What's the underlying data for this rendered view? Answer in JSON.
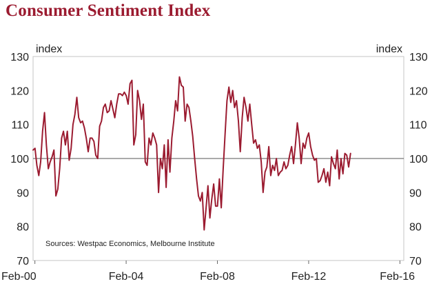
{
  "chart_data": {
    "type": "line",
    "title": "Consumer Sentiment Index",
    "y_unit_left": "index",
    "y_unit_right": "index",
    "ylim": [
      70,
      130
    ],
    "yticks": [
      70,
      80,
      90,
      100,
      110,
      120,
      130
    ],
    "reference_line": 100,
    "source": "Sources: Westpac Economics, Melbourne Institute",
    "x_range": [
      "Jan-00",
      "Apr-16"
    ],
    "xticks": [
      {
        "label": "Feb-00",
        "t": 0.08
      },
      {
        "label": "Feb-04",
        "t": 4.08
      },
      {
        "label": "Feb-08",
        "t": 8.08
      },
      {
        "label": "Feb-12",
        "t": 12.08
      },
      {
        "label": "Feb-16",
        "t": 16.08
      }
    ],
    "series": [
      {
        "name": "Consumer Sentiment Index",
        "color": "#9b1b30",
        "t_start": 0.0,
        "t_step": 0.08333,
        "values": [
          102.5,
          103,
          98,
          95,
          99,
          108,
          113.5,
          104,
          97,
          99,
          100.5,
          102.5,
          89,
          91,
          97,
          106,
          108,
          104,
          108,
          99.5,
          103,
          110,
          113,
          118,
          112,
          110.5,
          111,
          109,
          106,
          102,
          106,
          106,
          105,
          101,
          100,
          109.5,
          111,
          115,
          116,
          113.5,
          114,
          117,
          114.5,
          112,
          116,
          119,
          119,
          118.5,
          119.5,
          118.5,
          116,
          122,
          123,
          104,
          107,
          120,
          117,
          111.5,
          116,
          99,
          98,
          106,
          104,
          107.5,
          106,
          104,
          90,
          100,
          97,
          104,
          91.5,
          105.5,
          96,
          106,
          111,
          117,
          114,
          124,
          121.5,
          121,
          111,
          116,
          115,
          111,
          106.5,
          100,
          94,
          89,
          87.5,
          90,
          79,
          85.5,
          92,
          82.5,
          88,
          92.5,
          86,
          86,
          94,
          85.5,
          97,
          107,
          117,
          121,
          116.5,
          120,
          115,
          117,
          111,
          102,
          112,
          118,
          115,
          111,
          116,
          110,
          104.5,
          105.5,
          103,
          104,
          99,
          90,
          96,
          97.5,
          103.5,
          95,
          98,
          96.5,
          100,
          95,
          96,
          96.5,
          99,
          97,
          98,
          101,
          103.5,
          98.5,
          104,
          110.5,
          106,
          98.5,
          104.5,
          103,
          106,
          107.5,
          103.5,
          101,
          99.5,
          100,
          93,
          93.5,
          95,
          97,
          93,
          96,
          92,
          100.5,
          98.5,
          97,
          102.5,
          94,
          100,
          95.5,
          101.5,
          101,
          97.5,
          101.5
        ]
      }
    ]
  }
}
